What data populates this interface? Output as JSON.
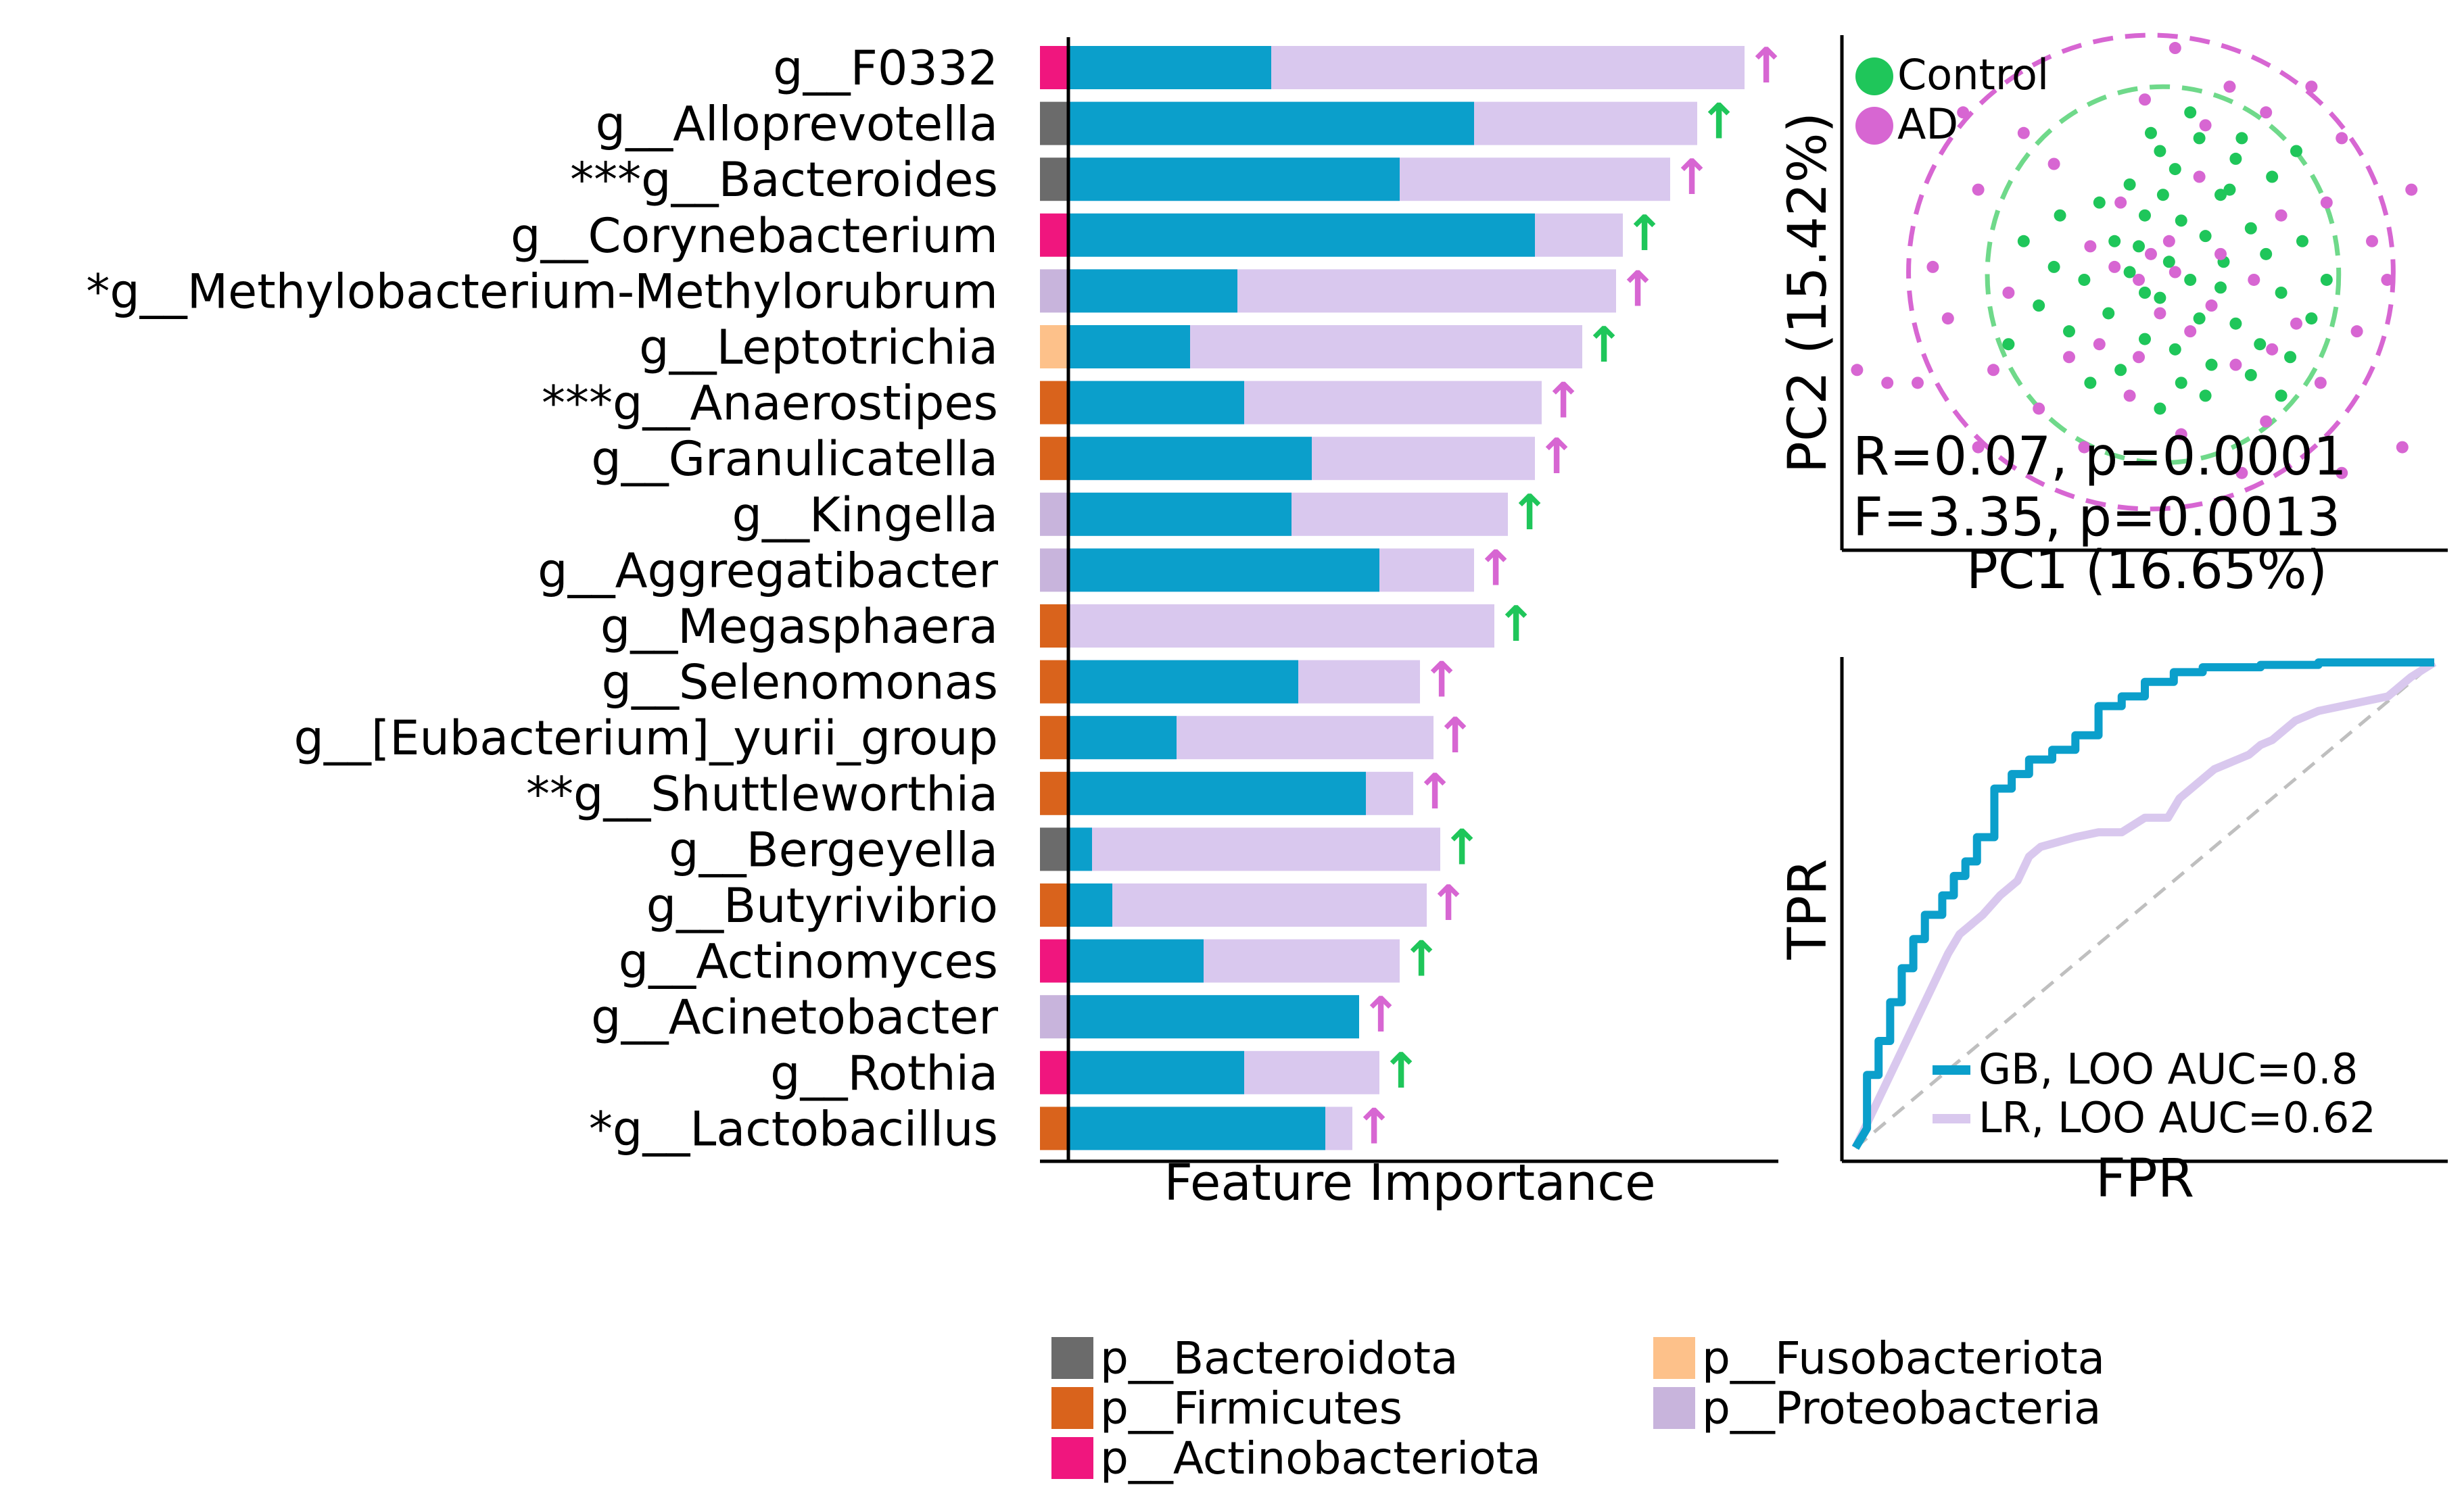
{
  "colors": {
    "gb_blue": "#0b9fcb",
    "light_purple": "#d9c8ee",
    "up_green": "#1fc65a",
    "up_magenta": "#d766d2",
    "control_green": "#1fc65a",
    "ad_magenta": "#d766d2",
    "diagonal_gray": "#bfbfbf"
  },
  "chart_data": [
    {
      "type": "bar",
      "name": "feature-importance",
      "xlabel": "Feature Importance",
      "categories": [
        "g__F0332",
        "g__Alloprevotella",
        "***g__Bacteroides",
        "g__Corynebacterium",
        "*g__Methylobacterium-Methylorubrum",
        "g__Leptotrichia",
        "***g__Anaerostipes",
        "g__Granulicatella",
        "g__Kingella",
        "g__Aggregatibacter",
        "g__Megasphaera",
        "g__Selenomonas",
        "g__[Eubacterium]_yurii_group",
        "**g__Shuttleworthia",
        "g__Bergeyella",
        "g__Butyrivibrio",
        "g__Actinomyces",
        "g__Acinetobacter",
        "g__Rothia",
        "*g__Lactobacillus"
      ],
      "phylum": [
        "p__Actinobacteriota",
        "p__Bacteroidota",
        "p__Bacteroidota",
        "p__Actinobacteriota",
        "p__Proteobacteria",
        "p__Fusobacteriota",
        "p__Firmicutes",
        "p__Firmicutes",
        "p__Proteobacteria",
        "p__Proteobacteria",
        "p__Firmicutes",
        "p__Firmicutes",
        "p__Firmicutes",
        "p__Firmicutes",
        "p__Bacteroidota",
        "p__Firmicutes",
        "p__Actinobacteriota",
        "p__Proteobacteria",
        "p__Actinobacteriota",
        "p__Firmicutes"
      ],
      "series": [
        {
          "name": "GB",
          "color": "#0b9fcb",
          "values": [
            0.3,
            0.6,
            0.49,
            0.69,
            0.25,
            0.18,
            0.26,
            0.36,
            0.33,
            0.46,
            0.0,
            0.34,
            0.16,
            0.44,
            0.035,
            0.065,
            0.2,
            0.43,
            0.26,
            0.38
          ]
        },
        {
          "name": "LR",
          "color": "#d9c8ee",
          "values": [
            1.0,
            0.93,
            0.89,
            0.82,
            0.81,
            0.76,
            0.7,
            0.69,
            0.65,
            0.6,
            0.63,
            0.52,
            0.54,
            0.51,
            0.55,
            0.53,
            0.49,
            0.43,
            0.46,
            0.42
          ]
        }
      ],
      "direction": [
        "up",
        "up",
        "up",
        "up",
        "up",
        "up",
        "up",
        "up",
        "up",
        "up",
        "up",
        "up",
        "up",
        "up",
        "up",
        "up",
        "up",
        "up",
        "up",
        "up"
      ],
      "direction_symbol": "↑",
      "direction_group": [
        "AD",
        "Control",
        "AD",
        "Control",
        "AD",
        "Control",
        "AD",
        "AD",
        "Control",
        "AD",
        "Control",
        "AD",
        "AD",
        "AD",
        "Control",
        "AD",
        "Control",
        "AD",
        "Control",
        "AD"
      ]
    },
    {
      "type": "scatter",
      "name": "pcoa",
      "xlabel": "PC1 (16.65%)",
      "ylabel": "PC2 (15.42%)",
      "xlim": [
        -1,
        1
      ],
      "ylim": [
        -1,
        1
      ],
      "legend": [
        {
          "label": "Control",
          "color": "#1fc65a"
        },
        {
          "label": "AD",
          "color": "#d766d2"
        }
      ],
      "annotations": [
        "R=0.07, p=0.0001",
        "F=3.35, p=0.0013"
      ],
      "ellipses": [
        {
          "group": "Control",
          "center": [
            0.06,
            0.07
          ],
          "radius": [
            0.58,
            0.73
          ],
          "style": "dashed"
        },
        {
          "group": "AD",
          "center": [
            0.02,
            0.08
          ],
          "radius": [
            0.8,
            0.92
          ],
          "style": "dashed"
        }
      ],
      "series": [
        {
          "name": "Control",
          "color": "#1fc65a",
          "points": [
            [
              0.05,
              0.55
            ],
            [
              0.1,
              0.48
            ],
            [
              0.18,
              0.6
            ],
            [
              -0.05,
              0.42
            ],
            [
              0.25,
              0.38
            ],
            [
              0.3,
              0.52
            ],
            [
              -0.15,
              0.35
            ],
            [
              0.0,
              0.3
            ],
            [
              0.12,
              0.28
            ],
            [
              0.2,
              0.22
            ],
            [
              -0.1,
              0.2
            ],
            [
              0.35,
              0.25
            ],
            [
              0.4,
              0.15
            ],
            [
              0.08,
              0.12
            ],
            [
              -0.05,
              0.08
            ],
            [
              0.15,
              0.05
            ],
            [
              0.25,
              0.02
            ],
            [
              -0.2,
              0.05
            ],
            [
              0.45,
              0.0
            ],
            [
              0.05,
              -0.02
            ],
            [
              -0.12,
              -0.08
            ],
            [
              0.18,
              -0.1
            ],
            [
              0.3,
              -0.12
            ],
            [
              0.38,
              -0.2
            ],
            [
              -0.25,
              -0.15
            ],
            [
              0.0,
              -0.18
            ],
            [
              0.1,
              -0.22
            ],
            [
              0.22,
              -0.28
            ],
            [
              -0.08,
              -0.3
            ],
            [
              0.35,
              -0.32
            ],
            [
              0.48,
              -0.25
            ],
            [
              0.55,
              -0.1
            ],
            [
              0.52,
              0.2
            ],
            [
              -0.3,
              0.1
            ],
            [
              -0.35,
              -0.05
            ],
            [
              0.28,
              0.4
            ],
            [
              0.42,
              0.45
            ],
            [
              0.0,
              0.0
            ],
            [
              -0.02,
              0.18
            ],
            [
              0.12,
              -0.35
            ],
            [
              0.2,
              -0.4
            ],
            [
              -0.18,
              -0.35
            ],
            [
              0.06,
              0.38
            ],
            [
              0.32,
              0.6
            ],
            [
              0.15,
              0.7
            ],
            [
              -0.28,
              0.3
            ],
            [
              0.5,
              0.55
            ],
            [
              0.45,
              -0.4
            ],
            [
              -0.4,
              0.2
            ],
            [
              -0.45,
              -0.2
            ],
            [
              0.05,
              -0.45
            ],
            [
              0.26,
              0.12
            ],
            [
              0.02,
              0.62
            ],
            [
              0.6,
              0.05
            ]
          ]
        },
        {
          "name": "AD",
          "color": "#d766d2",
          "points": [
            [
              -0.6,
              0.7
            ],
            [
              -0.55,
              0.4
            ],
            [
              -0.7,
              0.1
            ],
            [
              0.55,
              0.8
            ],
            [
              0.4,
              0.7
            ],
            [
              0.65,
              0.6
            ],
            [
              0.2,
              0.65
            ],
            [
              -0.3,
              0.5
            ],
            [
              0.08,
              0.2
            ],
            [
              -0.02,
              0.05
            ],
            [
              0.1,
              0.08
            ],
            [
              0.22,
              -0.05
            ],
            [
              -0.15,
              -0.2
            ],
            [
              0.3,
              -0.28
            ],
            [
              -0.05,
              -0.4
            ],
            [
              0.12,
              -0.55
            ],
            [
              0.4,
              -0.5
            ],
            [
              -0.35,
              -0.45
            ],
            [
              0.58,
              -0.35
            ],
            [
              -0.5,
              -0.3
            ],
            [
              0.7,
              -0.15
            ],
            [
              -0.65,
              -0.1
            ],
            [
              0.6,
              0.35
            ],
            [
              -0.4,
              0.62
            ],
            [
              0.75,
              0.2
            ],
            [
              -0.75,
              -0.35
            ],
            [
              0.45,
              0.3
            ],
            [
              -0.08,
              0.35
            ],
            [
              0.18,
              0.45
            ],
            [
              0.0,
              0.75
            ],
            [
              -0.85,
              -0.35
            ],
            [
              0.65,
              -0.7
            ],
            [
              0.8,
              0.05
            ],
            [
              -0.2,
              -0.6
            ],
            [
              0.32,
              -0.7
            ],
            [
              -0.1,
              0.1
            ],
            [
              0.02,
              0.15
            ],
            [
              0.05,
              -0.08
            ],
            [
              0.15,
              -0.15
            ],
            [
              -0.02,
              -0.25
            ],
            [
              0.25,
              0.15
            ],
            [
              -0.25,
              -0.25
            ],
            [
              0.36,
              0.05
            ],
            [
              -0.45,
              0.0
            ],
            [
              0.5,
              -0.12
            ],
            [
              0.1,
              0.95
            ],
            [
              -0.95,
              -0.3
            ],
            [
              0.85,
              -0.6
            ],
            [
              -0.55,
              -0.6
            ],
            [
              0.42,
              -0.22
            ],
            [
              -0.18,
              0.18
            ],
            [
              0.28,
              0.8
            ],
            [
              0.88,
              0.4
            ]
          ]
        }
      ]
    },
    {
      "type": "line",
      "name": "roc",
      "xlabel": "FPR",
      "ylabel": "TPR",
      "xlim": [
        0,
        1
      ],
      "ylim": [
        0,
        1
      ],
      "series": [
        {
          "name": "GB",
          "label": "GB, LOO AUC=0.8",
          "color": "#0b9fcb",
          "x": [
            0.0,
            0.02,
            0.02,
            0.04,
            0.04,
            0.06,
            0.06,
            0.08,
            0.08,
            0.1,
            0.1,
            0.12,
            0.12,
            0.15,
            0.15,
            0.17,
            0.17,
            0.19,
            0.19,
            0.21,
            0.21,
            0.24,
            0.24,
            0.27,
            0.27,
            0.3,
            0.3,
            0.34,
            0.34,
            0.38,
            0.38,
            0.42,
            0.42,
            0.46,
            0.46,
            0.5,
            0.5,
            0.55,
            0.55,
            0.6,
            0.6,
            0.7,
            0.7,
            0.8,
            0.8,
            0.9,
            0.9,
            1.0
          ],
          "y": [
            0.0,
            0.04,
            0.15,
            0.15,
            0.22,
            0.22,
            0.3,
            0.3,
            0.37,
            0.37,
            0.43,
            0.43,
            0.48,
            0.48,
            0.52,
            0.52,
            0.56,
            0.56,
            0.59,
            0.59,
            0.64,
            0.64,
            0.74,
            0.74,
            0.77,
            0.77,
            0.8,
            0.8,
            0.82,
            0.82,
            0.85,
            0.85,
            0.91,
            0.91,
            0.93,
            0.93,
            0.96,
            0.96,
            0.98,
            0.98,
            0.99,
            0.99,
            0.995,
            0.995,
            1.0,
            1.0,
            1.0,
            1.0
          ]
        },
        {
          "name": "LR",
          "label": "LR, LOO AUC=0.62",
          "color": "#d9c8ee",
          "x": [
            0.0,
            0.04,
            0.08,
            0.12,
            0.16,
            0.18,
            0.2,
            0.22,
            0.25,
            0.28,
            0.3,
            0.32,
            0.35,
            0.38,
            0.42,
            0.46,
            0.5,
            0.54,
            0.56,
            0.58,
            0.6,
            0.62,
            0.64,
            0.66,
            0.68,
            0.7,
            0.72,
            0.74,
            0.76,
            0.78,
            0.8,
            0.84,
            0.88,
            0.92,
            0.96,
            1.0
          ],
          "y": [
            0.0,
            0.1,
            0.2,
            0.3,
            0.4,
            0.44,
            0.46,
            0.48,
            0.52,
            0.55,
            0.6,
            0.62,
            0.63,
            0.64,
            0.65,
            0.65,
            0.68,
            0.68,
            0.72,
            0.74,
            0.76,
            0.78,
            0.79,
            0.8,
            0.81,
            0.83,
            0.84,
            0.86,
            0.88,
            0.89,
            0.9,
            0.91,
            0.92,
            0.93,
            0.97,
            1.0
          ]
        },
        {
          "name": "chance",
          "color": "#bfbfbf",
          "x": [
            0,
            1
          ],
          "y": [
            0,
            1
          ]
        }
      ]
    }
  ],
  "phylum_legend": [
    {
      "label": "p__Bacteroidota",
      "color": "#6b6b6b"
    },
    {
      "label": "p__Firmicutes",
      "color": "#d9631c"
    },
    {
      "label": "p__Actinobacteriota",
      "color": "#f0167e"
    },
    {
      "label": "p__Fusobacteriota",
      "color": "#fdc18a"
    },
    {
      "label": "p__Proteobacteria",
      "color": "#c8b4dc"
    }
  ]
}
